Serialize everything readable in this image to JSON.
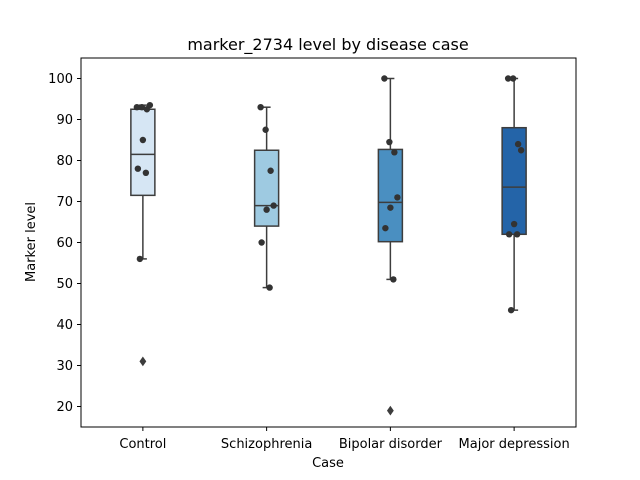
{
  "chart_data": {
    "type": "box",
    "title": "marker_2734 level by disease case",
    "xlabel": "Case",
    "ylabel": "Marker level",
    "ylim": [
      15,
      105
    ],
    "yticks": [
      20,
      30,
      40,
      50,
      60,
      70,
      80,
      90,
      100
    ],
    "categories": [
      "Control",
      "Schizophrenia",
      "Bipolar disorder",
      "Major depression"
    ],
    "colors": [
      "#d6e6f4",
      "#9ecae1",
      "#4a8fc1",
      "#2464a8"
    ],
    "boxes": [
      {
        "category": "Control",
        "q1": 71.5,
        "median": 81.5,
        "q3": 92.5,
        "whisker_low": 56,
        "whisker_high": 93.5,
        "outliers": [
          31
        ]
      },
      {
        "category": "Schizophrenia",
        "q1": 64,
        "median": 69,
        "q3": 82.5,
        "whisker_low": 49,
        "whisker_high": 93,
        "outliers": []
      },
      {
        "category": "Bipolar disorder",
        "q1": 60.2,
        "median": 69.8,
        "q3": 82.7,
        "whisker_low": 51,
        "whisker_high": 100,
        "outliers": [
          19
        ]
      },
      {
        "category": "Major depression",
        "q1": 62,
        "median": 73.5,
        "q3": 88,
        "whisker_low": 43.5,
        "whisker_high": 100,
        "outliers": []
      }
    ],
    "points": [
      {
        "category": "Control",
        "values": [
          93,
          93,
          92.5,
          93.5,
          85,
          78,
          77,
          56
        ]
      },
      {
        "category": "Schizophrenia",
        "values": [
          93,
          87.5,
          77.5,
          69,
          68,
          60,
          49
        ]
      },
      {
        "category": "Bipolar disorder",
        "values": [
          100,
          84.5,
          82,
          71,
          68.5,
          63.5,
          51
        ]
      },
      {
        "category": "Major depression",
        "values": [
          100,
          100,
          84,
          82.5,
          64.5,
          62,
          62,
          43.5
        ]
      }
    ]
  }
}
